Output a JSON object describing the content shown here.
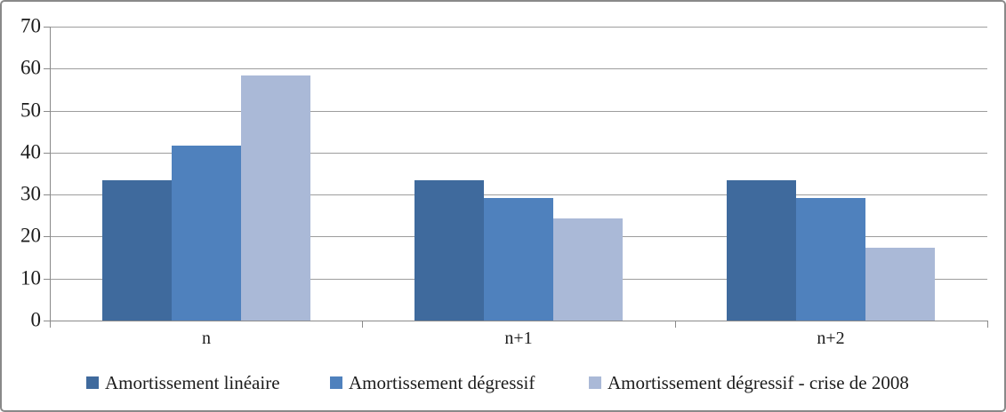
{
  "chart_data": {
    "type": "bar",
    "categories": [
      "n",
      "n+1",
      "n+2"
    ],
    "series": [
      {
        "name": "Amortissement linéaire",
        "color": "#3F6A9D",
        "values": [
          33.33,
          33.33,
          33.33
        ]
      },
      {
        "name": "Amortissement dégressif",
        "color": "#4F81BD",
        "values": [
          41.67,
          29.17,
          29.17
        ]
      },
      {
        "name": "Amortissement dégressif - crise de 2008",
        "color": "#AAB9D7",
        "values": [
          58.33,
          24.31,
          17.36
        ]
      }
    ],
    "ylim": [
      0,
      70
    ],
    "yticks": [
      0,
      10,
      20,
      30,
      40,
      50,
      60,
      70
    ],
    "grid": true,
    "legend_position": "bottom"
  },
  "colors": {
    "gridline": "#9D9D9D",
    "axis": "#8A8A8A",
    "frame_border": "#898989",
    "text": "#1C1C1C",
    "background": "#FFFFFF"
  }
}
